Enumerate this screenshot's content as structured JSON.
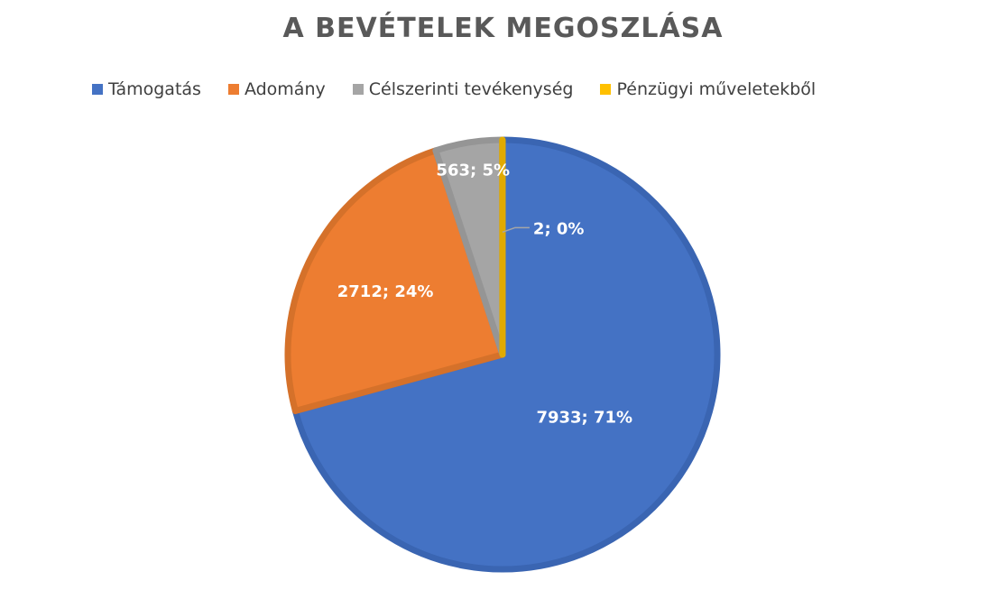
{
  "chart_data": {
    "type": "pie",
    "title": "A BEVÉTELEK MEGOSZLÁSA",
    "legend_position": "top",
    "categories": [
      "Támogatás",
      "Adomány",
      "Célszerinti tevékenység",
      "Pénzügyi műveletekből"
    ],
    "values": [
      7933,
      2712,
      563,
      2
    ],
    "data_labels": [
      "7933; 71%",
      "2712; 24%",
      "563; 5%",
      "2; 0%"
    ],
    "colors": [
      "#4472C4",
      "#ED7D31",
      "#A5A5A5",
      "#FFC000"
    ],
    "border_colors": [
      "#3A65B2",
      "#D5712A",
      "#959595",
      "#E0AA00"
    ]
  }
}
